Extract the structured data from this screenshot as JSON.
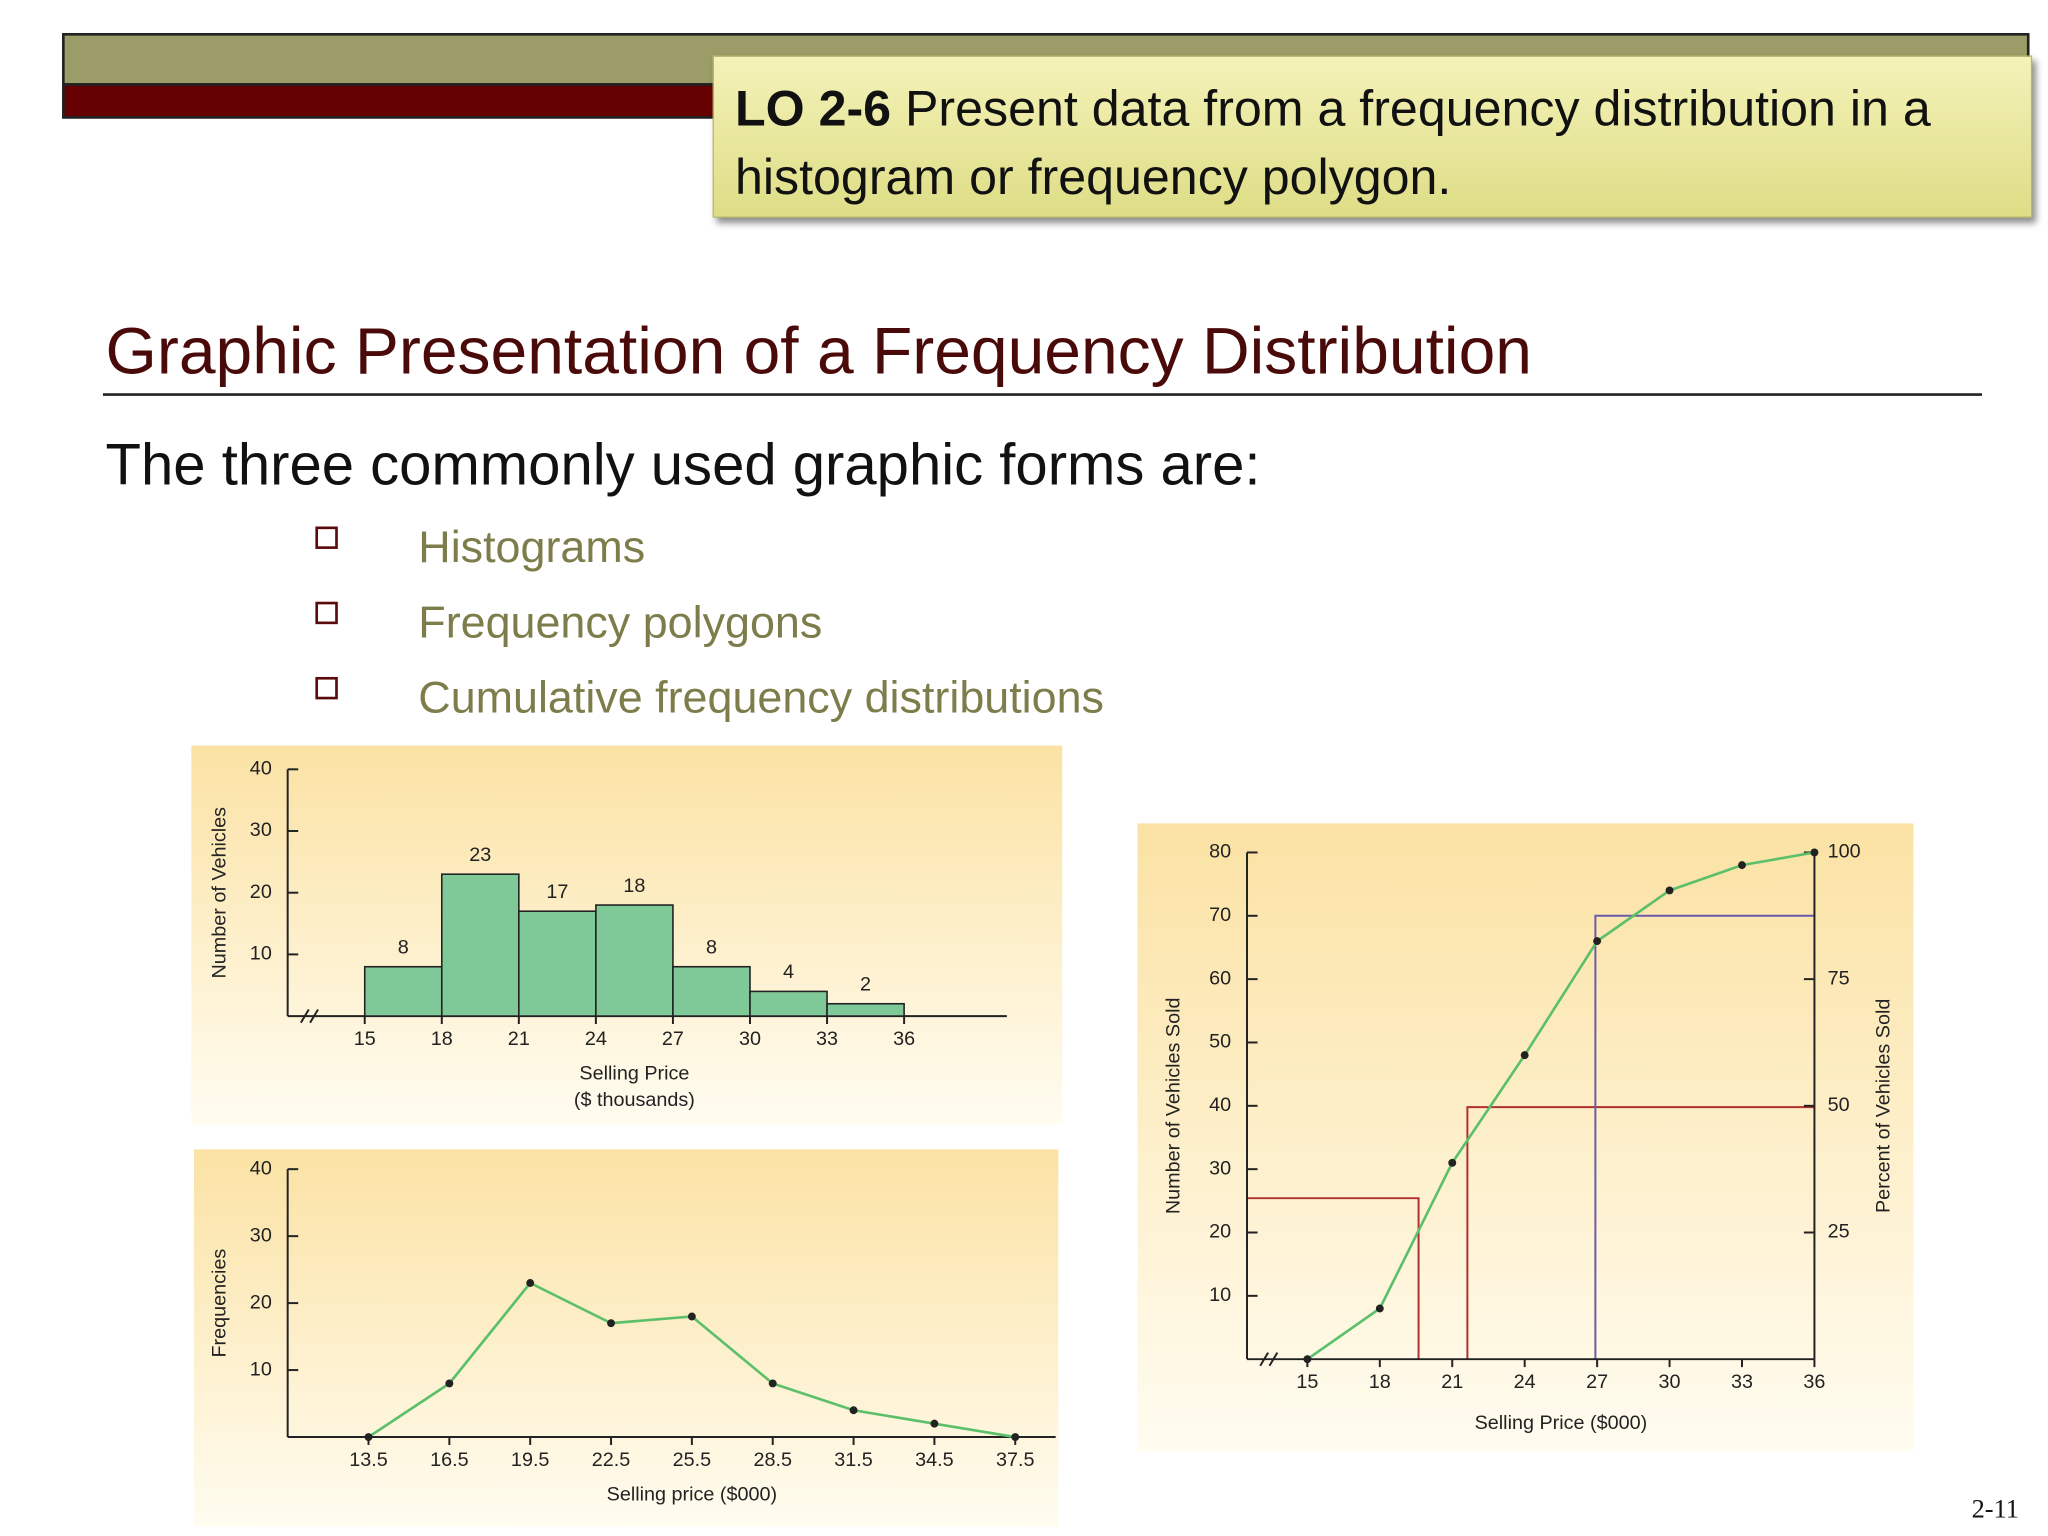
{
  "header": {
    "objective_code": "LO 2-6",
    "objective_text": "Present data from a frequency distribution in a histogram or frequency polygon."
  },
  "title": "Graphic Presentation of a Frequency Distribution",
  "intro": "The three commonly used graphic forms are:",
  "bullets": [
    "Histograms",
    "Frequency polygons",
    "Cumulative frequency distributions"
  ],
  "page_number": "2-11",
  "chart_data": [
    {
      "type": "histogram",
      "ylabel": "Number of Vehicles",
      "xlabel": [
        "Selling Price",
        "($ thousands)"
      ],
      "bins": [
        15,
        18,
        21,
        24,
        27,
        30,
        33,
        36
      ],
      "values": [
        8,
        23,
        17,
        18,
        8,
        4,
        2
      ],
      "color": "#7fc897",
      "xlim": [
        12,
        40
      ],
      "xticks": [
        15,
        18,
        21,
        24,
        27,
        30,
        33,
        36
      ],
      "ylim": [
        0,
        40
      ],
      "yticks": [
        10,
        20,
        30,
        40
      ]
    },
    {
      "type": "line",
      "ylabel": "Frequencies",
      "xlabel": [
        "Selling price ($000)"
      ],
      "x": [
        13.5,
        16.5,
        19.5,
        22.5,
        25.5,
        28.5,
        31.5,
        34.5,
        37.5
      ],
      "values": [
        0,
        8,
        23,
        17,
        18,
        8,
        4,
        2,
        0
      ],
      "color": "#5cbf6a",
      "xlim": [
        10.5,
        39
      ],
      "xticks": [
        13.5,
        16.5,
        19.5,
        22.5,
        25.5,
        28.5,
        31.5,
        34.5,
        37.5
      ],
      "ylim": [
        0,
        40
      ],
      "yticks": [
        10,
        20,
        30,
        40
      ]
    },
    {
      "type": "line",
      "ylabel": "Number of Vehicles Sold",
      "y2label": "Percent of Vehicles Sold",
      "xlabel": [
        "Selling Price ($000)"
      ],
      "x": [
        15,
        18,
        21,
        24,
        27,
        30,
        33,
        36
      ],
      "values": [
        0,
        8,
        31,
        48,
        66,
        74,
        78,
        80
      ],
      "color": "#5cbf6a",
      "xlim": [
        12.5,
        36
      ],
      "xticks": [
        15,
        18,
        21,
        24,
        27,
        30,
        33,
        36
      ],
      "ylim": [
        0,
        80
      ],
      "yticks": [
        10,
        20,
        30,
        40,
        50,
        60,
        70,
        80
      ],
      "y2lim": [
        0,
        100
      ],
      "y2ticks": [
        25,
        50,
        75,
        100
      ]
    }
  ]
}
